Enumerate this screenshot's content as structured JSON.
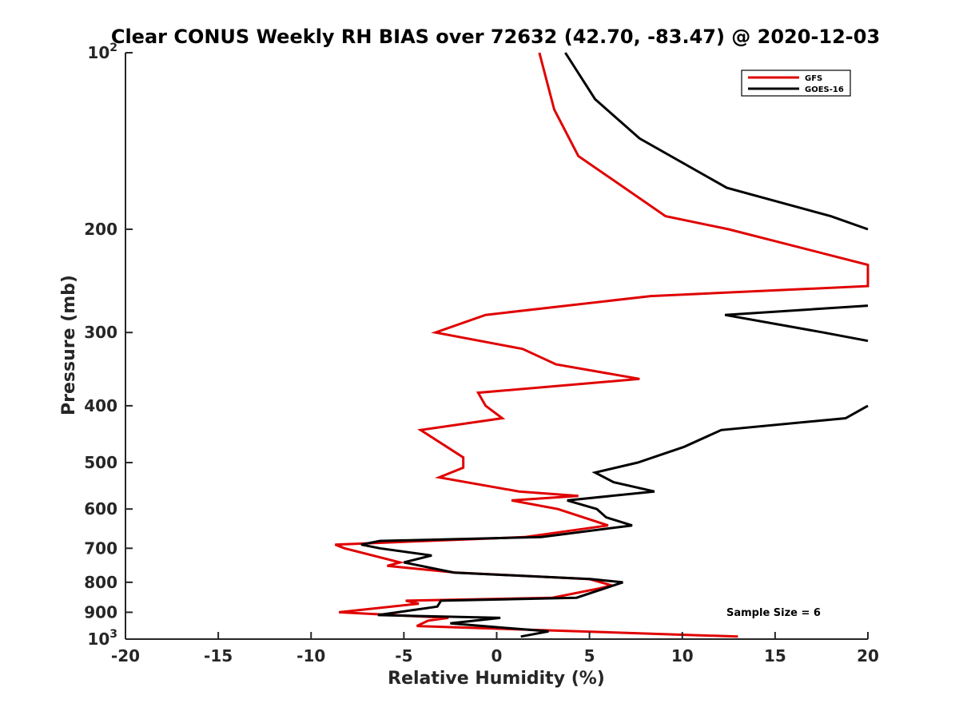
{
  "chart_data": {
    "type": "line",
    "title": "Clear CONUS Weekly RH BIAS over 72632 (42.70, -83.47) @ 2020-12-03",
    "xlabel": "Relative Humidity (%)",
    "ylabel": "Pressure (mb)",
    "xlim": [
      -20,
      20
    ],
    "ylim": [
      100,
      1000
    ],
    "y_scale": "log",
    "y_reversed": true,
    "x_ticks": [
      -20,
      -15,
      -10,
      -5,
      0,
      5,
      10,
      15,
      20
    ],
    "x_tick_labels": [
      "-20",
      "-15",
      "-10",
      "-5",
      "0",
      "5",
      "10",
      "15",
      "20"
    ],
    "y_ticks": [
      100,
      200,
      300,
      400,
      500,
      600,
      700,
      800,
      900,
      1000
    ],
    "y_tick_labels": [
      {
        "base": "10",
        "exp": "2"
      },
      {
        "base": "200",
        "exp": ""
      },
      {
        "base": "300",
        "exp": ""
      },
      {
        "base": "400",
        "exp": ""
      },
      {
        "base": "500",
        "exp": ""
      },
      {
        "base": "600",
        "exp": ""
      },
      {
        "base": "700",
        "exp": ""
      },
      {
        "base": "800",
        "exp": ""
      },
      {
        "base": "900",
        "exp": ""
      },
      {
        "base": "10",
        "exp": "3"
      }
    ],
    "grid": false,
    "legend_position": "top-right",
    "annotation": "Sample Size = 6",
    "series": [
      {
        "name": "GFS",
        "color": "#e00000",
        "points": [
          [
            2.3,
            100
          ],
          [
            3.1,
            125
          ],
          [
            4.4,
            150
          ],
          [
            9.1,
            190
          ],
          [
            12.5,
            200
          ],
          [
            20,
            230
          ],
          [
            20,
            250
          ],
          [
            8.3,
            260
          ],
          [
            -0.6,
            280
          ],
          [
            -3.3,
            300
          ],
          [
            1.4,
            320
          ],
          [
            3.2,
            340
          ],
          [
            7.7,
            360
          ],
          [
            -1.0,
            380
          ],
          [
            -0.6,
            400
          ],
          [
            0.3,
            420
          ],
          [
            -4.1,
            440
          ],
          [
            -1.8,
            490
          ],
          [
            -1.8,
            510
          ],
          [
            -3.1,
            530
          ],
          [
            1.2,
            560
          ],
          [
            4.4,
            570
          ],
          [
            0.8,
            580
          ],
          [
            3.3,
            600
          ],
          [
            6.0,
            640
          ],
          [
            1.5,
            670
          ],
          [
            -8.7,
            690
          ],
          [
            -8.2,
            700
          ],
          [
            -5.2,
            740
          ],
          [
            -5.9,
            750
          ],
          [
            -2.2,
            770
          ],
          [
            5.0,
            790
          ],
          [
            6.2,
            810
          ],
          [
            5.5,
            820
          ],
          [
            3.0,
            850
          ],
          [
            -4.9,
            860
          ],
          [
            -4.2,
            870
          ],
          [
            -8.5,
            900
          ],
          [
            -2.6,
            920
          ],
          [
            -3.7,
            930
          ],
          [
            -4.3,
            950
          ],
          [
            13.0,
            990
          ]
        ]
      },
      {
        "name": "GOES-16",
        "color": "#000000",
        "points": [
          [
            3.7,
            100
          ],
          [
            5.3,
            120
          ],
          [
            7.7,
            140
          ],
          [
            12.4,
            170
          ],
          [
            18.0,
            190
          ],
          [
            20,
            200
          ],
          [
            null,
            200
          ],
          [
            20,
            270
          ],
          [
            12.3,
            280
          ],
          [
            17.6,
            300
          ],
          [
            20,
            310
          ],
          [
            null,
            310
          ],
          [
            20,
            400
          ],
          [
            18.8,
            420
          ],
          [
            12.1,
            440
          ],
          [
            10.1,
            470
          ],
          [
            7.6,
            500
          ],
          [
            5.3,
            520
          ],
          [
            6.3,
            540
          ],
          [
            8.5,
            560
          ],
          [
            3.8,
            580
          ],
          [
            5.4,
            600
          ],
          [
            5.9,
            620
          ],
          [
            7.3,
            640
          ],
          [
            2.4,
            670
          ],
          [
            -6.3,
            680
          ],
          [
            -7.3,
            690
          ],
          [
            -6.3,
            700
          ],
          [
            -3.5,
            720
          ],
          [
            -5.0,
            740
          ],
          [
            -2.3,
            770
          ],
          [
            5.1,
            790
          ],
          [
            6.8,
            800
          ],
          [
            4.3,
            850
          ],
          [
            -3.0,
            860
          ],
          [
            -3.2,
            880
          ],
          [
            -6.4,
            910
          ],
          [
            0.2,
            920
          ],
          [
            -2.5,
            940
          ],
          [
            2.8,
            970
          ],
          [
            1.3,
            990
          ]
        ]
      }
    ]
  }
}
